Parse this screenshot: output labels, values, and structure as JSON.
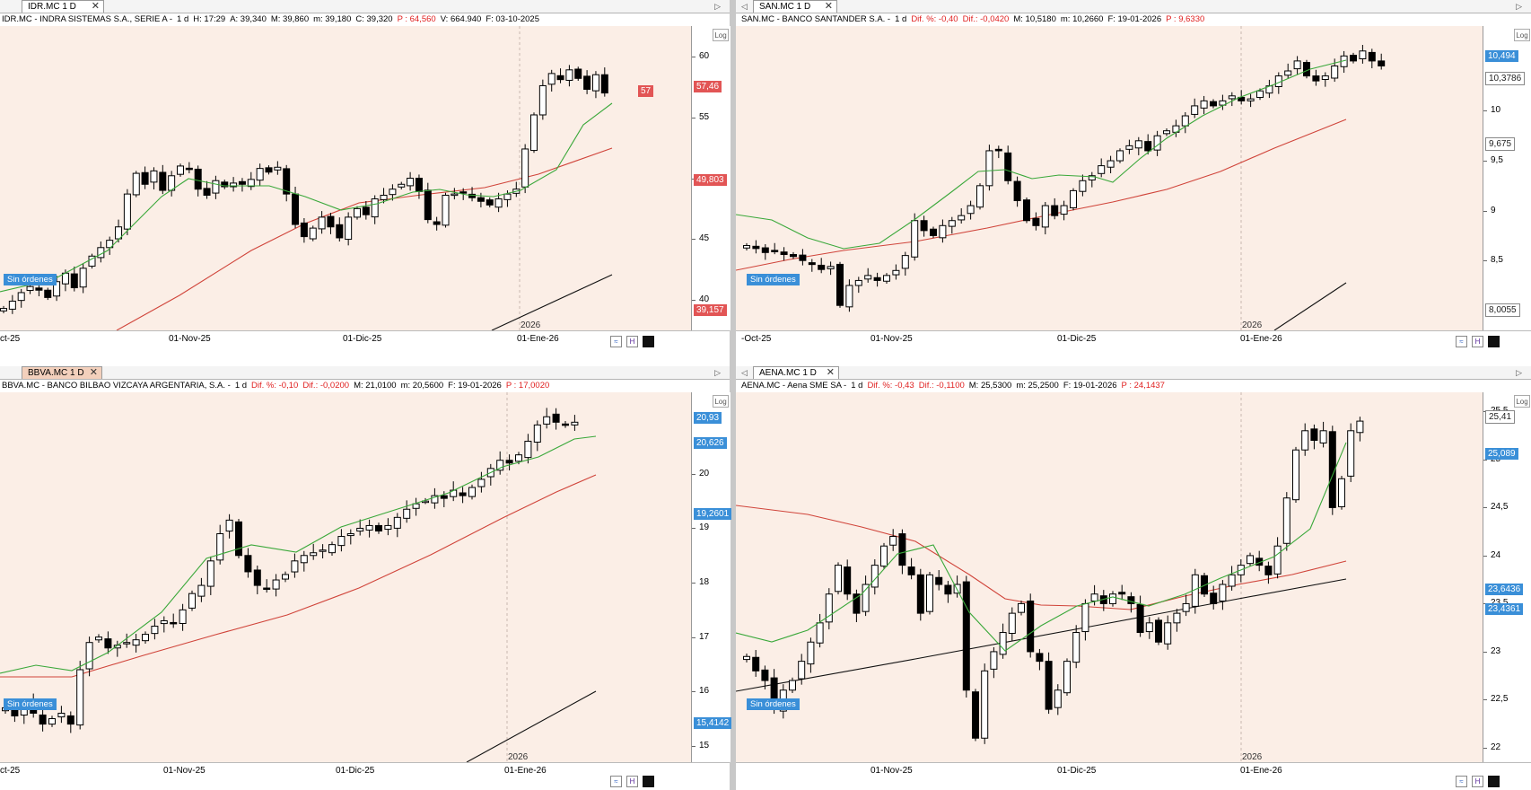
{
  "panels": [
    {
      "tab": "IDR.MC 1 D",
      "tab_active": false,
      "symbol": "IDR.MC - INDRA SISTEMAS S.A., SERIE A -",
      "period": "1 d",
      "stats": [
        {
          "t": "H: 17:29",
          "neg": false
        },
        {
          "t": "A: 39,340",
          "neg": false
        },
        {
          "t": "M: 39,860",
          "neg": false
        },
        {
          "t": "m: 39,180",
          "neg": false
        },
        {
          "t": "C: 39,320",
          "neg": false
        },
        {
          "t": "P : 64,560",
          "neg": true
        },
        {
          "t": "V: 664.940",
          "neg": false
        },
        {
          "t": "F: 03-10-2025",
          "neg": false
        }
      ],
      "log_label": "Log",
      "orders_label": "Sin órdenes",
      "year_label": "2026",
      "y_ticks": [
        "60",
        "55",
        "50",
        "45",
        "40"
      ],
      "x_labels": [
        "ct-25",
        "01-Nov-25",
        "01-Dic-25",
        "01-Ene-26"
      ],
      "price_tags": [
        {
          "text": "57",
          "color": "red"
        },
        {
          "text": "57,46",
          "color": "red"
        },
        {
          "text": "49,803",
          "color": "red"
        },
        {
          "text": "39,157",
          "color": "red"
        }
      ],
      "chart_data": {
        "type": "candlestick",
        "y_range": [
          37.5,
          62.5
        ],
        "candles_close": [
          39.3,
          39.9,
          40.6,
          41.1,
          40.8,
          40.2,
          41.5,
          42.2,
          41.0,
          42.6,
          43.6,
          44.3,
          44.9,
          46.0,
          48.7,
          50.4,
          49.5,
          50.6,
          49.0,
          50.2,
          51.0,
          50.8,
          49.1,
          48.6,
          49.8,
          49.3,
          49.6,
          49.5,
          49.9,
          50.8,
          50.5,
          50.9,
          48.7,
          46.2,
          45.2,
          45.9,
          46.8,
          46.0,
          45.1,
          46.8,
          47.5,
          47.0,
          48.3,
          48.6,
          49.1,
          49.5,
          50.0,
          48.9,
          46.6,
          46.2,
          48.6,
          48.7,
          48.8,
          48.4,
          48.1,
          47.8,
          48.3,
          48.7,
          49.1,
          52.4,
          55.2,
          57.6,
          58.6,
          58.1,
          58.9,
          58.2,
          57.3,
          58.5,
          57.0
        ],
        "green_ma": "short moving average",
        "red_ma": "long moving average"
      }
    },
    {
      "tab": "SAN.MC 1 D",
      "tab_active": false,
      "symbol": "SAN.MC - BANCO SANTANDER S.A. -",
      "period": "1 d",
      "stats": [
        {
          "t": "Dif. %: -0,40",
          "neg": true
        },
        {
          "t": "Dif.: -0,0420",
          "neg": true
        },
        {
          "t": "M: 10,5180",
          "neg": false
        },
        {
          "t": "m: 10,2660",
          "neg": false
        },
        {
          "t": "F: 19-01-2026",
          "neg": false
        },
        {
          "t": "P : 9,6330",
          "neg": true
        }
      ],
      "log_label": "Log",
      "orders_label": "Sin órdenes",
      "year_label": "2026",
      "y_ticks": [
        "10",
        "9,5",
        "9",
        "8,5"
      ],
      "x_labels": [
        "-Oct-25",
        "01-Nov-25",
        "01-Dic-25",
        "01-Ene-26"
      ],
      "price_tags": [
        {
          "text": "10,494",
          "color": "blue"
        },
        {
          "text": "10,3786",
          "color": "white"
        },
        {
          "text": "9,675",
          "color": "white"
        },
        {
          "text": "8,0055",
          "color": "white"
        }
      ],
      "chart_data": {
        "type": "candlestick",
        "y_range": [
          7.8,
          10.85
        ],
        "candles_close": [
          8.65,
          8.62,
          8.58,
          8.6,
          8.56,
          8.54,
          8.5,
          8.46,
          8.41,
          8.44,
          8.05,
          8.25,
          8.3,
          8.35,
          8.3,
          8.35,
          8.4,
          8.55,
          8.9,
          8.8,
          8.75,
          8.85,
          8.9,
          8.95,
          9.05,
          9.25,
          9.6,
          9.6,
          9.3,
          9.1,
          8.9,
          8.85,
          9.05,
          8.95,
          9.05,
          9.2,
          9.3,
          9.35,
          9.45,
          9.5,
          9.6,
          9.65,
          9.7,
          9.6,
          9.75,
          9.8,
          9.85,
          9.95,
          10.05,
          10.1,
          10.05,
          10.1,
          10.15,
          10.1,
          10.12,
          10.2,
          10.25,
          10.35,
          10.4,
          10.5,
          10.35,
          10.3,
          10.35,
          10.45,
          10.55,
          10.5,
          10.6,
          10.5,
          10.45
        ]
      }
    },
    {
      "tab": "BBVA.MC 1 D",
      "tab_active": true,
      "symbol": "BBVA.MC - BANCO BILBAO VIZCAYA ARGENTARIA, S.A. -",
      "period": "1 d",
      "stats": [
        {
          "t": "Dif. %: -0,10",
          "neg": true
        },
        {
          "t": "Dif.: -0,0200",
          "neg": true
        },
        {
          "t": "M: 21,0100",
          "neg": false
        },
        {
          "t": "m: 20,5600",
          "neg": false
        },
        {
          "t": "F: 19-01-2026",
          "neg": false
        },
        {
          "t": "P : 17,0020",
          "neg": true
        }
      ],
      "log_label": "Log",
      "orders_label": "Sin órdenes",
      "year_label": "2026",
      "y_ticks": [
        "20",
        "19",
        "18",
        "17",
        "16",
        "15"
      ],
      "x_labels": [
        "ct-25",
        "01-Nov-25",
        "01-Dic-25",
        "01-Ene-26"
      ],
      "price_tags": [
        {
          "text": "20,93",
          "color": "blue"
        },
        {
          "text": "20,626",
          "color": "blue"
        },
        {
          "text": "19,2601",
          "color": "blue"
        },
        {
          "text": "15,4142",
          "color": "blue"
        }
      ],
      "chart_data": {
        "type": "candlestick",
        "y_range": [
          14.7,
          21.5
        ],
        "candles_close": [
          15.7,
          15.55,
          15.75,
          15.6,
          15.4,
          15.5,
          15.6,
          15.4,
          16.4,
          16.9,
          17.0,
          16.8,
          16.85,
          16.9,
          16.95,
          17.05,
          17.2,
          17.3,
          17.25,
          17.5,
          17.8,
          17.95,
          18.4,
          18.9,
          19.15,
          18.5,
          18.2,
          17.95,
          17.9,
          18.05,
          18.15,
          18.4,
          18.5,
          18.55,
          18.6,
          18.7,
          18.85,
          18.9,
          19.0,
          19.05,
          18.95,
          19.05,
          19.2,
          19.35,
          19.45,
          19.5,
          19.6,
          19.55,
          19.7,
          19.6,
          19.75,
          19.9,
          20.1,
          20.25,
          20.2,
          20.35,
          20.6,
          20.9,
          21.05,
          20.95,
          20.9,
          20.95
        ]
      }
    },
    {
      "tab": "AENA.MC 1 D",
      "tab_active": false,
      "symbol": "AENA.MC - Aena SME SA -",
      "period": "1 d",
      "stats": [
        {
          "t": "Dif. %: -0,43",
          "neg": true
        },
        {
          "t": "Dif.: -0,1100",
          "neg": true
        },
        {
          "t": "M: 25,5300",
          "neg": false
        },
        {
          "t": "m: 25,2500",
          "neg": false
        },
        {
          "t": "F: 19-01-2026",
          "neg": false
        },
        {
          "t": "P : 24,1437",
          "neg": true
        }
      ],
      "log_label": "Log",
      "orders_label": "Sin órdenes",
      "year_label": "2026",
      "y_ticks": [
        "25,5",
        "25",
        "24,5",
        "24",
        "23,5",
        "23",
        "22,5",
        "22"
      ],
      "x_labels": [
        "01-Nov-25",
        "01-Dic-25",
        "01-Ene-26"
      ],
      "price_tags": [
        {
          "text": "25,41",
          "color": "white"
        },
        {
          "text": "25,089",
          "color": "blue"
        },
        {
          "text": "23,6436",
          "color": "blue"
        },
        {
          "text": "23,4361",
          "color": "blue"
        }
      ],
      "chart_data": {
        "type": "candlestick",
        "y_range": [
          21.85,
          25.7
        ],
        "candles_close": [
          22.95,
          22.8,
          22.7,
          22.4,
          22.6,
          22.7,
          22.9,
          23.1,
          23.3,
          23.6,
          23.9,
          23.6,
          23.4,
          23.7,
          23.9,
          24.1,
          24.2,
          23.9,
          23.8,
          23.4,
          23.8,
          23.7,
          23.6,
          23.7,
          22.6,
          22.1,
          22.8,
          23.0,
          23.2,
          23.4,
          23.5,
          23.0,
          22.9,
          22.4,
          22.6,
          22.9,
          23.2,
          23.5,
          23.6,
          23.5,
          23.6,
          23.6,
          23.5,
          23.2,
          23.3,
          23.1,
          23.3,
          23.4,
          23.5,
          23.8,
          23.6,
          23.5,
          23.7,
          23.8,
          23.9,
          24.0,
          23.9,
          23.8,
          24.1,
          24.6,
          25.1,
          25.3,
          25.2,
          25.3,
          24.5,
          24.8,
          25.3,
          25.4
        ]
      }
    }
  ]
}
